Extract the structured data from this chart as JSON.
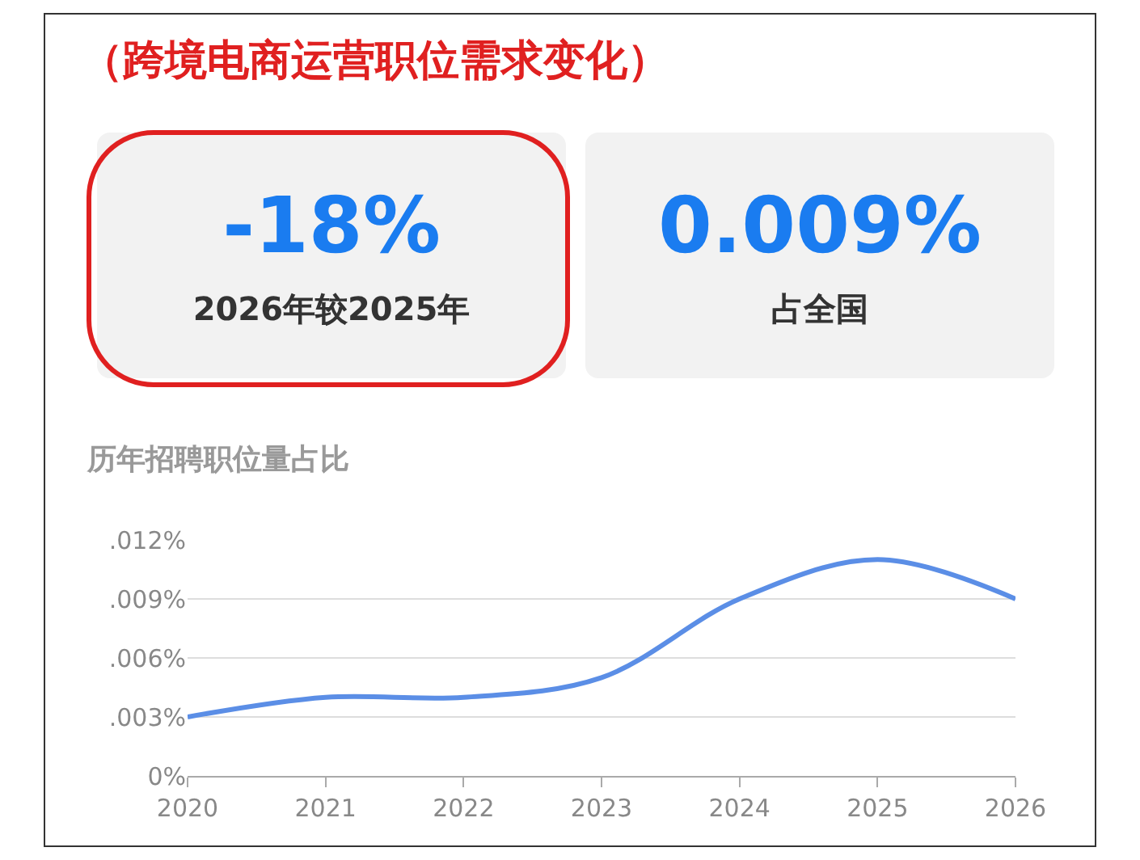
{
  "chart_data": [
    {
      "type": "other",
      "title": "（跨境电商运营职位需求变化）",
      "annotations": [
        "-18%",
        "2026年较2025年",
        "0.009%",
        "占全国"
      ]
    },
    {
      "type": "line",
      "title": "历年招聘职位量占比",
      "x": [
        2020,
        2021,
        2022,
        2023,
        2024,
        2025,
        2026
      ],
      "values": [
        0.003,
        0.004,
        0.004,
        0.005,
        0.009,
        0.011,
        0.009
      ],
      "color": "#5b8ee6",
      "xlim": [
        2020,
        2026
      ],
      "xticks": [
        2020,
        2021,
        2022,
        2023,
        2024,
        2025,
        2026
      ],
      "ylim": [
        0,
        0.012
      ],
      "yticks": [
        {
          "value": 0,
          "label": "0%"
        },
        {
          "value": 0.003,
          "label": ".003%"
        },
        {
          "value": 0.006,
          "label": ".006%"
        },
        {
          "value": 0.009,
          "label": ".009%"
        },
        {
          "value": 0.012,
          "label": ".012%"
        }
      ],
      "grid": "y"
    }
  ]
}
